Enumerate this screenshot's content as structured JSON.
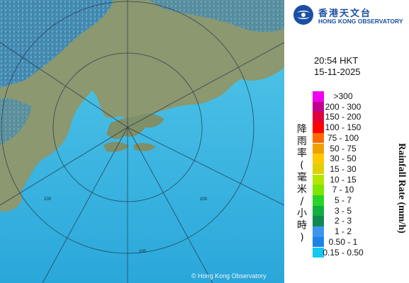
{
  "map": {
    "ring_labels": [
      "100",
      "100",
      "100"
    ],
    "copyright": "© Hong Kong Observatory",
    "colors": {
      "sea": "#3fb6de",
      "land": "#8a9a6e",
      "rain_light": "#2f8fd8",
      "rings": "#203040"
    }
  },
  "header": {
    "logo_cn": "香港天文台",
    "logo_en": "HONG KONG OBSERVATORY",
    "time": "20:54 HKT",
    "date": "15-11-2025"
  },
  "legend": {
    "title_cn": "降雨率(毫米/小時)",
    "title_en": "Rainfall Rate (mm/h)",
    "items": [
      {
        "label": ">300",
        "color": "#f000f0"
      },
      {
        "label": "200 - 300",
        "color": "#c0008e"
      },
      {
        "label": "150 - 200",
        "color": "#e0003a"
      },
      {
        "label": "100 - 150",
        "color": "#ff0000"
      },
      {
        "label": "75 - 100",
        "color": "#ff6a00"
      },
      {
        "label": "50 - 75",
        "color": "#f0a000"
      },
      {
        "label": "30 - 50",
        "color": "#ffc800"
      },
      {
        "label": "15 - 30",
        "color": "#e0d000"
      },
      {
        "label": "10 - 15",
        "color": "#b4e600"
      },
      {
        "label": "7 - 10",
        "color": "#7ee600"
      },
      {
        "label": "5 - 7",
        "color": "#28d428"
      },
      {
        "label": "3 - 5",
        "color": "#10b040"
      },
      {
        "label": "2 - 3",
        "color": "#108a50"
      },
      {
        "label": "1 - 2",
        "color": "#3c96f0"
      },
      {
        "label": "0.50 - 1",
        "color": "#1c82e8"
      },
      {
        "label": "0.15 - 0.50",
        "color": "#14c8f0"
      }
    ]
  }
}
